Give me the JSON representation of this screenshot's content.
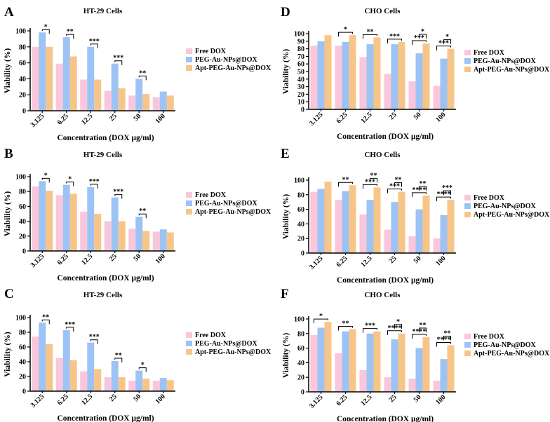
{
  "figure": {
    "colors": {
      "free": "#f9c6dc",
      "peg": "#9dc3f5",
      "apt": "#f8c589",
      "axis": "#000000"
    },
    "legend": [
      "Free DOX",
      "PEG-Au-NPs@DOX",
      "Apt-PEG-Au-NPs@DOX"
    ]
  },
  "chart_data": [
    {
      "panel": "A",
      "type": "bar",
      "title": "HT-29 Cells",
      "xlabel": "Concentration (DOX μg/ml)",
      "ylabel": "Viability (%)",
      "ylim": [
        0,
        100
      ],
      "yticks": [
        "0",
        "20",
        "40",
        "60",
        "80",
        "100"
      ],
      "categories": [
        "3.125",
        "6.25",
        "12.5",
        "25",
        "50",
        "100"
      ],
      "series": [
        {
          "name": "Free DOX",
          "values": [
            80,
            59,
            39,
            25,
            19,
            17
          ]
        },
        {
          "name": "PEG-Au-NPs@DOX",
          "values": [
            98,
            92,
            80,
            59,
            40,
            24
          ]
        },
        {
          "name": "Apt-PEG-Au-NPs@DOX",
          "values": [
            80,
            68,
            39,
            28,
            21,
            19
          ]
        }
      ],
      "annotations": [
        {
          "cat": 0,
          "from": 1,
          "to": 2,
          "label": "*"
        },
        {
          "cat": 1,
          "from": 1,
          "to": 2,
          "label": "**"
        },
        {
          "cat": 2,
          "from": 1,
          "to": 2,
          "label": "***"
        },
        {
          "cat": 3,
          "from": 1,
          "to": 2,
          "label": "***"
        },
        {
          "cat": 4,
          "from": 1,
          "to": 2,
          "label": "**"
        }
      ]
    },
    {
      "panel": "B",
      "type": "bar",
      "title": "HT-29 Cells",
      "xlabel": "Concentration (DOX μg/ml)",
      "ylabel": "Viability (%)",
      "ylim": [
        0,
        100
      ],
      "yticks": [
        "0",
        "20",
        "40",
        "60",
        "80",
        "100"
      ],
      "categories": [
        "3.125",
        "6.25",
        "12.5",
        "25",
        "50",
        "100"
      ],
      "series": [
        {
          "name": "Free DOX",
          "values": [
            87,
            75,
            53,
            40,
            30,
            26
          ]
        },
        {
          "name": "PEG-Au-NPs@DOX",
          "values": [
            94,
            89,
            86,
            72,
            46,
            29
          ]
        },
        {
          "name": "Apt-PEG-Au-NPs@DOX",
          "values": [
            81,
            77,
            50,
            40,
            27,
            25
          ]
        }
      ],
      "annotations": [
        {
          "cat": 0,
          "from": 1,
          "to": 2,
          "label": "*"
        },
        {
          "cat": 1,
          "from": 1,
          "to": 2,
          "label": "*"
        },
        {
          "cat": 2,
          "from": 1,
          "to": 2,
          "label": "***"
        },
        {
          "cat": 3,
          "from": 1,
          "to": 2,
          "label": "***"
        },
        {
          "cat": 4,
          "from": 1,
          "to": 2,
          "label": "**"
        }
      ]
    },
    {
      "panel": "C",
      "type": "bar",
      "title": "HT-29 Cells",
      "xlabel": "Concentration (DOX μg/ml)",
      "ylabel": "Viability (%)",
      "ylim": [
        0,
        100
      ],
      "yticks": [
        "0",
        "20",
        "40",
        "60",
        "80",
        "100"
      ],
      "categories": [
        "3.125",
        "6.25",
        "12.5",
        "25",
        "50",
        "100"
      ],
      "series": [
        {
          "name": "Free DOX",
          "values": [
            74,
            45,
            27,
            19,
            14,
            14
          ]
        },
        {
          "name": "PEG-Au-NPs@DOX",
          "values": [
            93,
            83,
            66,
            41,
            28,
            18
          ]
        },
        {
          "name": "Apt-PEG-Au-NPs@DOX",
          "values": [
            64,
            42,
            30,
            19,
            17,
            15
          ]
        }
      ],
      "annotations": [
        {
          "cat": 0,
          "from": 1,
          "to": 2,
          "label": "**"
        },
        {
          "cat": 1,
          "from": 1,
          "to": 2,
          "label": "***"
        },
        {
          "cat": 2,
          "from": 1,
          "to": 2,
          "label": "***"
        },
        {
          "cat": 3,
          "from": 1,
          "to": 2,
          "label": "**"
        },
        {
          "cat": 4,
          "from": 1,
          "to": 2,
          "label": "*"
        }
      ]
    },
    {
      "panel": "D",
      "type": "bar",
      "title": "CHO Cells",
      "xlabel": "Concentration (DOX μg/ml)",
      "ylabel": "Viability (%)",
      "ylim": [
        0,
        100
      ],
      "yticks": [
        "0",
        "10",
        "20",
        "30",
        "40",
        "50",
        "60",
        "70",
        "80",
        "90",
        "100"
      ],
      "categories": [
        "3.125",
        "6.25",
        "12.5",
        "25",
        "50",
        "100"
      ],
      "series": [
        {
          "name": "Free DOX",
          "values": [
            84,
            84,
            69,
            47,
            37,
            31
          ]
        },
        {
          "name": "PEG-Au-NPs@DOX",
          "values": [
            90,
            89,
            86,
            86,
            74,
            67
          ]
        },
        {
          "name": "Apt-PEG-Au-NPs@DOX",
          "values": [
            98,
            98,
            95,
            89,
            87,
            80
          ]
        }
      ],
      "annotations": [
        {
          "cat": 1,
          "from": 0,
          "to": 2,
          "label": "*"
        },
        {
          "cat": 2,
          "from": 0,
          "to": 2,
          "label": "**"
        },
        {
          "cat": 3,
          "from": 0,
          "to": 2,
          "label": "***"
        },
        {
          "cat": 4,
          "from": 0,
          "to": 2,
          "label": "***"
        },
        {
          "cat": 4,
          "from": 1,
          "to": 2,
          "label": "*"
        },
        {
          "cat": 5,
          "from": 0,
          "to": 2,
          "label": "***"
        },
        {
          "cat": 5,
          "from": 1,
          "to": 2,
          "label": "*"
        }
      ]
    },
    {
      "panel": "E",
      "type": "bar",
      "title": "CHO Cells",
      "xlabel": "Concentration (DOX μg/ml)",
      "ylabel": "Viability (%)",
      "ylim": [
        0,
        100
      ],
      "yticks": [
        "0",
        "20",
        "40",
        "60",
        "80",
        "100"
      ],
      "categories": [
        "3.125",
        "6.25",
        "12.5",
        "25",
        "50",
        "100"
      ],
      "series": [
        {
          "name": "Free DOX",
          "values": [
            84,
            73,
            53,
            32,
            23,
            20
          ]
        },
        {
          "name": "PEG-Au-NPs@DOX",
          "values": [
            88,
            85,
            73,
            70,
            60,
            52
          ]
        },
        {
          "name": "Apt-PEG-Au-NPs@DOX",
          "values": [
            98,
            93,
            90,
            84,
            79,
            73
          ]
        }
      ],
      "annotations": [
        {
          "cat": 1,
          "from": 0,
          "to": 2,
          "label": "**"
        },
        {
          "cat": 2,
          "from": 0,
          "to": 2,
          "label": "***"
        },
        {
          "cat": 2,
          "from": 1,
          "to": 2,
          "label": "**"
        },
        {
          "cat": 3,
          "from": 0,
          "to": 2,
          "label": "***"
        },
        {
          "cat": 3,
          "from": 1,
          "to": 2,
          "label": "**"
        },
        {
          "cat": 4,
          "from": 0,
          "to": 2,
          "label": "****"
        },
        {
          "cat": 4,
          "from": 1,
          "to": 2,
          "label": "**"
        },
        {
          "cat": 5,
          "from": 0,
          "to": 2,
          "label": "****"
        },
        {
          "cat": 5,
          "from": 1,
          "to": 2,
          "label": "***"
        }
      ]
    },
    {
      "panel": "F",
      "type": "bar",
      "title": "CHO Cells",
      "xlabel": "Concentration (DOX μg/ml)",
      "ylabel": "Viability (%)",
      "ylim": [
        0,
        100
      ],
      "yticks": [
        "0",
        "20",
        "40",
        "60",
        "80",
        "100"
      ],
      "categories": [
        "3.125",
        "6.25",
        "12.5",
        "25",
        "50",
        "100"
      ],
      "series": [
        {
          "name": "Free DOX",
          "values": [
            78,
            53,
            30,
            20,
            18,
            15
          ]
        },
        {
          "name": "PEG-Au-NPs@DOX",
          "values": [
            88,
            83,
            80,
            72,
            60,
            45
          ]
        },
        {
          "name": "Apt-PEG-Au-NPs@DOX",
          "values": [
            96,
            86,
            83,
            80,
            75,
            64
          ]
        }
      ],
      "annotations": [
        {
          "cat": 0,
          "from": 0,
          "to": 2,
          "label": "*"
        },
        {
          "cat": 1,
          "from": 0,
          "to": 2,
          "label": "**"
        },
        {
          "cat": 2,
          "from": 0,
          "to": 2,
          "label": "***"
        },
        {
          "cat": 3,
          "from": 0,
          "to": 2,
          "label": "****"
        },
        {
          "cat": 3,
          "from": 1,
          "to": 2,
          "label": "*"
        },
        {
          "cat": 4,
          "from": 0,
          "to": 2,
          "label": "****"
        },
        {
          "cat": 4,
          "from": 1,
          "to": 2,
          "label": "**"
        },
        {
          "cat": 5,
          "from": 0,
          "to": 2,
          "label": "****"
        },
        {
          "cat": 5,
          "from": 1,
          "to": 2,
          "label": "**"
        }
      ]
    }
  ]
}
